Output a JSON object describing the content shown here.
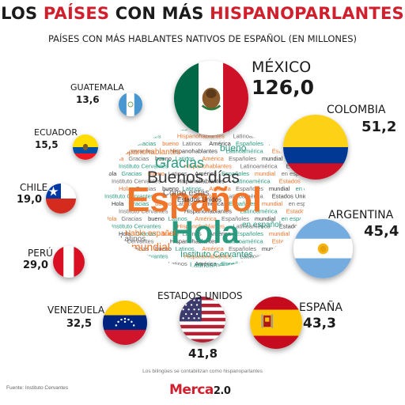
{
  "header": {
    "title_parts": [
      "LOS ",
      "PAÍSES",
      " CON MÁS ",
      "HISPANOPARLANTES"
    ],
    "subtitle": "PAÍSES CON MÁS HABLANTES NATIVOS DE ESPAÑOL (EN MILLONES)"
  },
  "chart_data": {
    "type": "bubble",
    "title": "LOS PAÍSES CON MÁS HISPANOPARLANTES",
    "subtitle": "PAÍSES CON MÁS HABLANTES NATIVOS DE ESPAÑOL (EN MILLONES)",
    "categories": [
      "MÉXICO",
      "COLOMBIA",
      "ARGENTINA",
      "ESPAÑA",
      "ESTADOS UNIDOS",
      "VENEZUELA",
      "PERÚ",
      "CHILE",
      "ECUADOR",
      "GUATEMALA"
    ],
    "values": [
      126.0,
      51.2,
      45.4,
      43.3,
      41.8,
      32.5,
      29.0,
      19.0,
      15.5,
      13.6
    ],
    "value_labels": [
      "126,0",
      "51,2",
      "45,4",
      "43,3",
      "41,8",
      "32,5",
      "29,0",
      "19,0",
      "15,5",
      "13,6"
    ],
    "flag_icons": [
      "mexico-flag-icon",
      "colombia-flag-icon",
      "argentina-flag-icon",
      "spain-flag-icon",
      "usa-flag-icon",
      "venezuela-flag-icon",
      "peru-flag-icon",
      "chile-flag-icon",
      "ecuador-flag-icon",
      "guatemala-flag-icon"
    ]
  },
  "word_cloud": {
    "main_words": [
      "Español",
      "Hola",
      "Buenos días",
      "Gracias",
      "Cómo estás",
      "mundial",
      "Instituto Cervantes",
      "Hablo español",
      "en español",
      "Latinos",
      "Latinoamérica",
      "bueno",
      "Hispanohablantes",
      "Estados Unidos",
      "Españoles",
      "América"
    ],
    "filler_words": [
      "Hola",
      "Gracias",
      "bueno",
      "Latinos",
      "América",
      "Españoles",
      "mundial",
      "en español",
      "Instituto Cervantes",
      "Hispanohablantes",
      "Latinoamérica",
      "Estados Unidos"
    ],
    "colors": [
      "#f0742a",
      "#2a9a7f",
      "#3a3a3a",
      "#6d6d6d"
    ]
  },
  "footer": {
    "note": "Los bilingües se contabilizan como hispanoparlantes",
    "source": "Fuente: Instituto Cervantes",
    "logo_main": "Merca",
    "logo_version": "2.0"
  },
  "colors": {
    "accent_red": "#d0202e",
    "text_dark": "#1b1b1b",
    "cloud_orange": "#f0742a",
    "cloud_teal": "#2a9a7f"
  }
}
